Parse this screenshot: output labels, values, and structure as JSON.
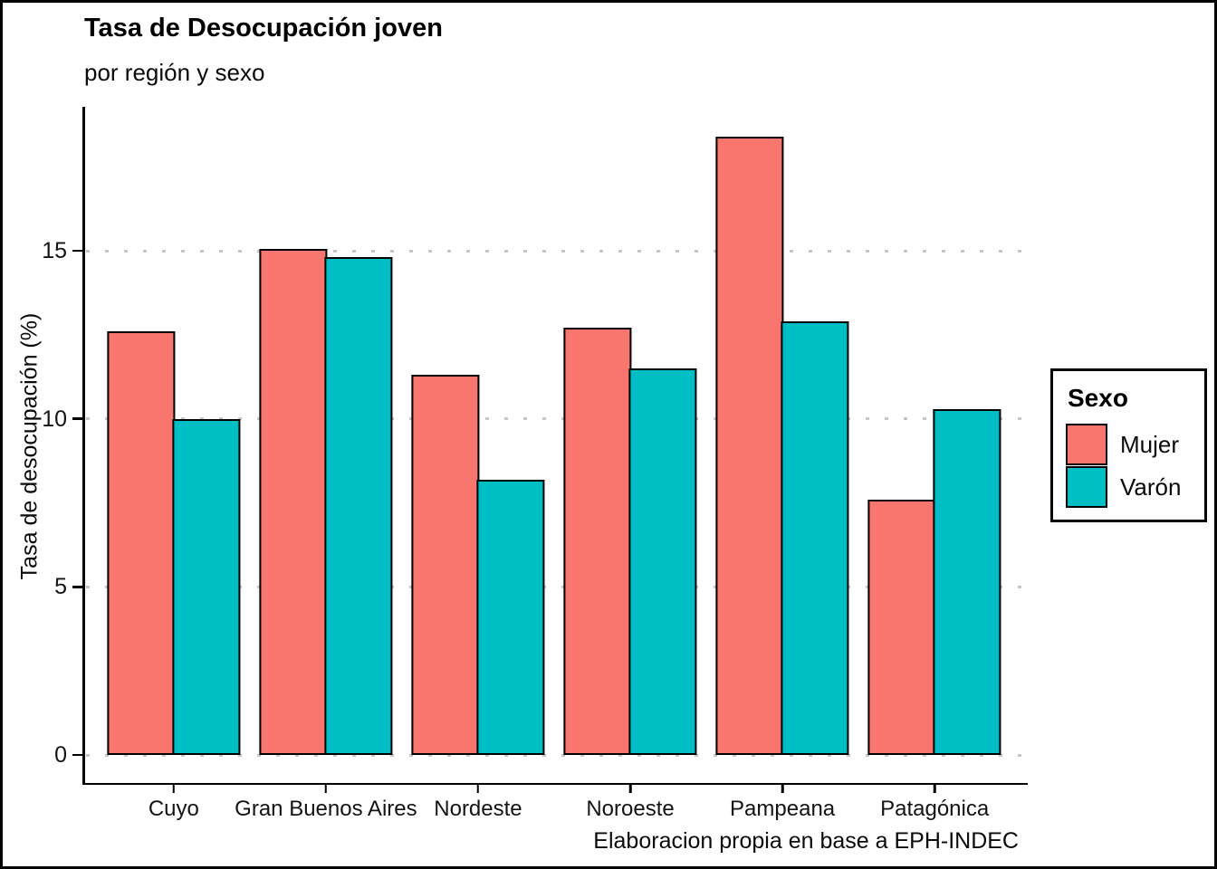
{
  "chart_data": {
    "type": "bar",
    "title": "Tasa de Desocupación joven",
    "subtitle": "por región y sexo",
    "ylabel": "Tasa de desocupación (%)",
    "xlabel": "",
    "caption": "Elaboracion propia en base a EPH-INDEC",
    "categories": [
      "Cuyo",
      "Gran Buenos Aires",
      "Nordeste",
      "Noroeste",
      "Pampeana",
      "Patagónica"
    ],
    "series": [
      {
        "name": "Mujer",
        "color": "#F8766D",
        "values": [
          12.6,
          15.05,
          11.3,
          12.7,
          18.4,
          7.6
        ]
      },
      {
        "name": "Varón",
        "color": "#00BFC4",
        "values": [
          10.0,
          14.8,
          8.2,
          11.5,
          12.9,
          10.3
        ]
      }
    ],
    "legend": {
      "title": "Sexo",
      "position": "right"
    },
    "yticks": [
      0,
      5,
      10,
      15
    ],
    "ylim": [
      0,
      19.3
    ],
    "grid": "horizontal dotted gray lines at yticks",
    "bar_border_color": "#000000",
    "axis_color": "#000000",
    "gridline_color": "#c6c6c6"
  }
}
